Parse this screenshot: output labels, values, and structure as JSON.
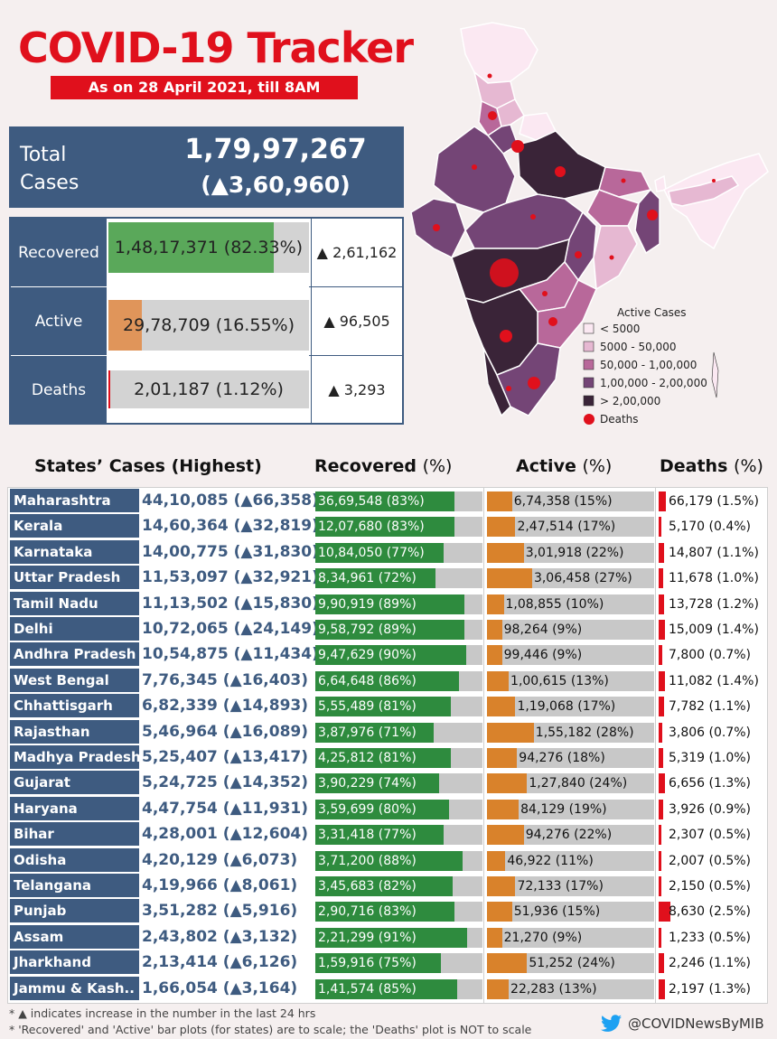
{
  "header": {
    "title": "COVID-19 Tracker",
    "date": "As on 28 April 2021, till 8AM"
  },
  "total": {
    "label_line1": "Total",
    "label_line2": "Cases",
    "value": "1,79,97,267",
    "delta": "(▲3,60,960)"
  },
  "summary": [
    {
      "label": "Recovered",
      "text": "1,48,17,371 (82.33%)",
      "delta": "▲ 2,61,162",
      "pct": 82.33,
      "color": "#5aa85a"
    },
    {
      "label": "Active",
      "text": "29,78,709 (16.55%)",
      "delta": "▲ 96,505",
      "pct": 16.55,
      "color": "#e0955a"
    },
    {
      "label": "Deaths",
      "text": "2,01,187 (1.12%)",
      "delta": "▲ 3,293",
      "pct": 1.12,
      "color": "#e0101c"
    }
  ],
  "legend": {
    "title": "Active Cases",
    "items": [
      {
        "label": "< 5000",
        "color": "#fbe8f2"
      },
      {
        "label": "5000 - 50,000",
        "color": "#e6b8d2"
      },
      {
        "label": "50,000 - 1,00,000",
        "color": "#b8689a"
      },
      {
        "label": "1,00,000 - 2,00,000",
        "color": "#744576"
      },
      {
        "label": "> 2,00,000",
        "color": "#3a2438"
      }
    ],
    "deaths_label": "Deaths"
  },
  "table_headers": {
    "states": "States’ Cases (Highest)",
    "recovered": "Recovered",
    "active": "Active",
    "deaths": "Deaths",
    "pct": "(%)"
  },
  "colors": {
    "navy": "#3e5b80",
    "green": "#2e8b3e",
    "orange": "#d9822b",
    "red": "#e0101c"
  },
  "chart_data": {
    "type": "bar",
    "title": "States’ Cases (Highest)",
    "series_names": [
      "Recovered",
      "Active",
      "Deaths"
    ],
    "rows": [
      {
        "state": "Maharashtra",
        "cases": "44,10,085 (▲66,358)",
        "rec": "36,69,548 (83%)",
        "rec_pct": 83,
        "act": "6,74,358 (15%)",
        "act_pct": 15,
        "death": "66,179 (1.5%)",
        "death_pct": 1.5
      },
      {
        "state": "Kerala",
        "cases": "14,60,364 (▲32,819)",
        "rec": "12,07,680 (83%)",
        "rec_pct": 83,
        "act": "2,47,514 (17%)",
        "act_pct": 17,
        "death": "5,170 (0.4%)",
        "death_pct": 0.4
      },
      {
        "state": "Karnataka",
        "cases": "14,00,775 (▲31,830)",
        "rec": "10,84,050 (77%)",
        "rec_pct": 77,
        "act": "3,01,918 (22%)",
        "act_pct": 22,
        "death": "14,807 (1.1%)",
        "death_pct": 1.1
      },
      {
        "state": "Uttar Pradesh",
        "cases": "11,53,097 (▲32,921)",
        "rec": "8,34,961 (72%)",
        "rec_pct": 72,
        "act": "3,06,458 (27%)",
        "act_pct": 27,
        "death": "11,678 (1.0%)",
        "death_pct": 1.0
      },
      {
        "state": "Tamil Nadu",
        "cases": "11,13,502 (▲15,830)",
        "rec": "9,90,919 (89%)",
        "rec_pct": 89,
        "act": "1,08,855 (10%)",
        "act_pct": 10,
        "death": "13,728 (1.2%)",
        "death_pct": 1.2
      },
      {
        "state": "Delhi",
        "cases": "10,72,065 (▲24,149)",
        "rec": "9,58,792 (89%)",
        "rec_pct": 89,
        "act": "98,264 (9%)",
        "act_pct": 9,
        "death": "15,009 (1.4%)",
        "death_pct": 1.4
      },
      {
        "state": "Andhra Pradesh",
        "cases": "10,54,875 (▲11,434)",
        "rec": "9,47,629 (90%)",
        "rec_pct": 90,
        "act": "99,446 (9%)",
        "act_pct": 9,
        "death": "7,800 (0.7%)",
        "death_pct": 0.7
      },
      {
        "state": "West Bengal",
        "cases": "7,76,345 (▲16,403)",
        "rec": "6,64,648 (86%)",
        "rec_pct": 86,
        "act": "1,00,615 (13%)",
        "act_pct": 13,
        "death": "11,082 (1.4%)",
        "death_pct": 1.4
      },
      {
        "state": "Chhattisgarh",
        "cases": "6,82,339 (▲14,893)",
        "rec": "5,55,489 (81%)",
        "rec_pct": 81,
        "act": "1,19,068 (17%)",
        "act_pct": 17,
        "death": "7,782 (1.1%)",
        "death_pct": 1.1
      },
      {
        "state": "Rajasthan",
        "cases": "5,46,964 (▲16,089)",
        "rec": "3,87,976 (71%)",
        "rec_pct": 71,
        "act": "1,55,182 (28%)",
        "act_pct": 28,
        "death": "3,806 (0.7%)",
        "death_pct": 0.7
      },
      {
        "state": "Madhya Pradesh",
        "cases": "5,25,407 (▲13,417)",
        "rec": "4,25,812 (81%)",
        "rec_pct": 81,
        "act": "94,276 (18%)",
        "act_pct": 18,
        "death": "5,319 (1.0%)",
        "death_pct": 1.0
      },
      {
        "state": "Gujarat",
        "cases": "5,24,725 (▲14,352)",
        "rec": "3,90,229 (74%)",
        "rec_pct": 74,
        "act": "1,27,840 (24%)",
        "act_pct": 24,
        "death": "6,656 (1.3%)",
        "death_pct": 1.3
      },
      {
        "state": "Haryana",
        "cases": "4,47,754 (▲11,931)",
        "rec": "3,59,699 (80%)",
        "rec_pct": 80,
        "act": "84,129 (19%)",
        "act_pct": 19,
        "death": "3,926 (0.9%)",
        "death_pct": 0.9
      },
      {
        "state": "Bihar",
        "cases": "4,28,001 (▲12,604)",
        "rec": "3,31,418 (77%)",
        "rec_pct": 77,
        "act": "94,276 (22%)",
        "act_pct": 22,
        "death": "2,307 (0.5%)",
        "death_pct": 0.5
      },
      {
        "state": "Odisha",
        "cases": "4,20,129 (▲6,073)",
        "rec": "3,71,200 (88%)",
        "rec_pct": 88,
        "act": "46,922 (11%)",
        "act_pct": 11,
        "death": "2,007 (0.5%)",
        "death_pct": 0.5
      },
      {
        "state": "Telangana",
        "cases": "4,19,966 (▲8,061)",
        "rec": "3,45,683 (82%)",
        "rec_pct": 82,
        "act": "72,133 (17%)",
        "act_pct": 17,
        "death": "2,150 (0.5%)",
        "death_pct": 0.5
      },
      {
        "state": "Punjab",
        "cases": "3,51,282 (▲5,916)",
        "rec": "2,90,716 (83%)",
        "rec_pct": 83,
        "act": "51,936 (15%)",
        "act_pct": 15,
        "death": "8,630 (2.5%)",
        "death_pct": 2.5
      },
      {
        "state": "Assam",
        "cases": "2,43,802 (▲3,132)",
        "rec": "2,21,299 (91%)",
        "rec_pct": 91,
        "act": "21,270 (9%)",
        "act_pct": 9,
        "death": "1,233 (0.5%)",
        "death_pct": 0.5
      },
      {
        "state": "Jharkhand",
        "cases": "2,13,414 (▲6,126)",
        "rec": "1,59,916 (75%)",
        "rec_pct": 75,
        "act": "51,252 (24%)",
        "act_pct": 24,
        "death": "2,246 (1.1%)",
        "death_pct": 1.1
      },
      {
        "state": "Jammu & Kash..",
        "cases": "1,66,054 (▲3,164)",
        "rec": "1,41,574 (85%)",
        "rec_pct": 85,
        "act": "22,283 (13%)",
        "act_pct": 13,
        "death": "2,197 (1.3%)",
        "death_pct": 1.3
      }
    ]
  },
  "footer": {
    "note1": "* ▲ indicates increase in the number in the last 24 hrs",
    "note2": "* 'Recovered' and 'Active' bar plots (for states) are to scale; the 'Deaths' plot is NOT to scale",
    "handle": "@COVIDNewsByMIB"
  }
}
